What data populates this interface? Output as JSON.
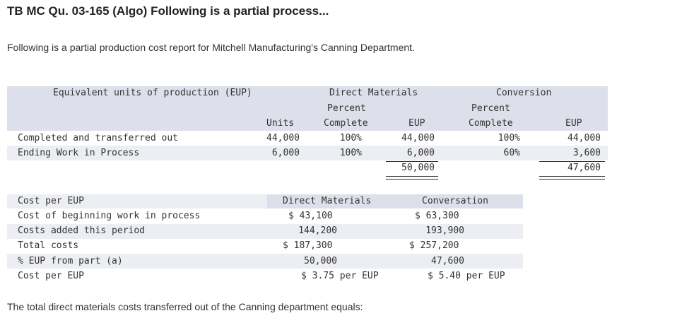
{
  "header": {
    "title": "TB MC Qu. 03-165 (Algo) Following is a partial process...",
    "intro": "Following is a partial production cost report for Mitchell Manufacturing's Canning Department.",
    "question": "The total direct materials costs transferred out of the Canning department equals:"
  },
  "eup_table": {
    "heading": "Equivalent units of production (EUP)",
    "dm_group": "Direct Materials",
    "conv_group": "Conversion",
    "col_units": "Units",
    "col_percent": "Percent",
    "col_complete": "Complete",
    "col_eup": "EUP",
    "rows": [
      {
        "label": "Completed and transferred out",
        "units": "44,000",
        "dm_pct": "100%",
        "dm_eup": "44,000",
        "conv_pct": "100%",
        "conv_eup": "44,000"
      },
      {
        "label": "Ending Work in Process",
        "units": "6,000",
        "dm_pct": "100%",
        "dm_eup": "6,000",
        "conv_pct": "60%",
        "conv_eup": "3,600"
      }
    ],
    "totals": {
      "dm_eup": "50,000",
      "conv_eup": "47,600"
    }
  },
  "cost_table": {
    "heading": "Cost per EUP",
    "dm_head": "Direct Materials",
    "conv_head": "Conversation",
    "rows": [
      {
        "label": "Cost of beginning work in process",
        "dm": "$ 43,100",
        "conv": "$ 63,300"
      },
      {
        "label": "Costs added this period",
        "dm": "144,200",
        "conv": "193,900"
      },
      {
        "label": "Total costs",
        "dm": "$ 187,300",
        "conv": "$ 257,200"
      },
      {
        "label": "% EUP from part (a)",
        "dm": "50,000",
        "conv": "47,600"
      },
      {
        "label": "Cost per EUP",
        "dm": "$ 3.75 per EUP",
        "conv": "$ 5.40 per EUP"
      }
    ]
  }
}
